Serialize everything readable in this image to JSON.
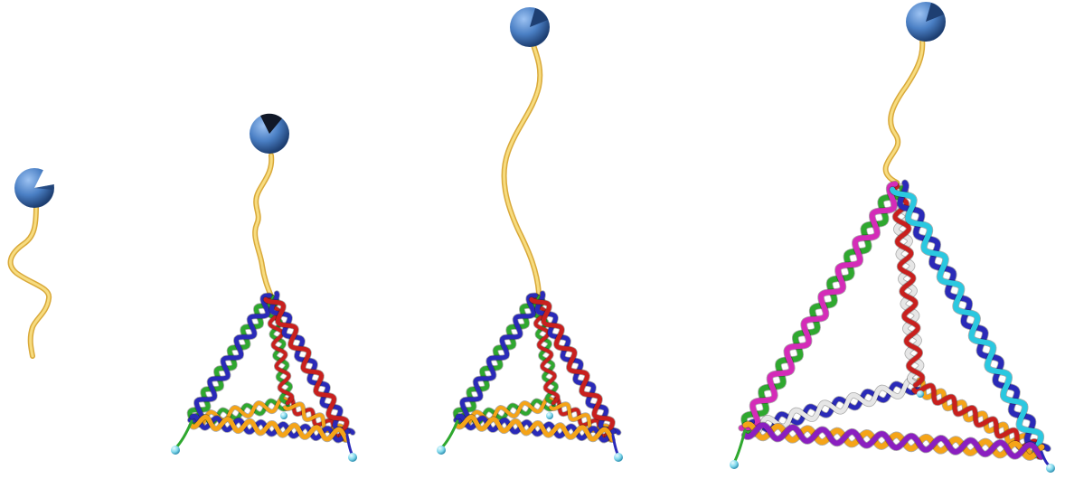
{
  "figure": {
    "panels": [
      {
        "id": "panel-1",
        "content": "free-strand-with-bead"
      },
      {
        "id": "panel-2",
        "content": "small-tetrahedron-with-tether"
      },
      {
        "id": "panel-3",
        "content": "small-tetrahedron-long-tether"
      },
      {
        "id": "panel-4",
        "content": "large-tetrahedron-with-tether"
      }
    ],
    "colors": {
      "bead": "#4a7fc4",
      "bead_dark": "#1e3f72",
      "tether": "#f2cf63",
      "blue": "#2a2ab8",
      "green": "#2fa82f",
      "red": "#c8201e",
      "orange": "#f5a418",
      "magenta": "#d42cb8",
      "cyan": "#2bc8e0",
      "white": "#e6e6e6",
      "purple": "#8a1fc0",
      "peach": "#f2b07a",
      "node": "#7fd8ec"
    }
  }
}
